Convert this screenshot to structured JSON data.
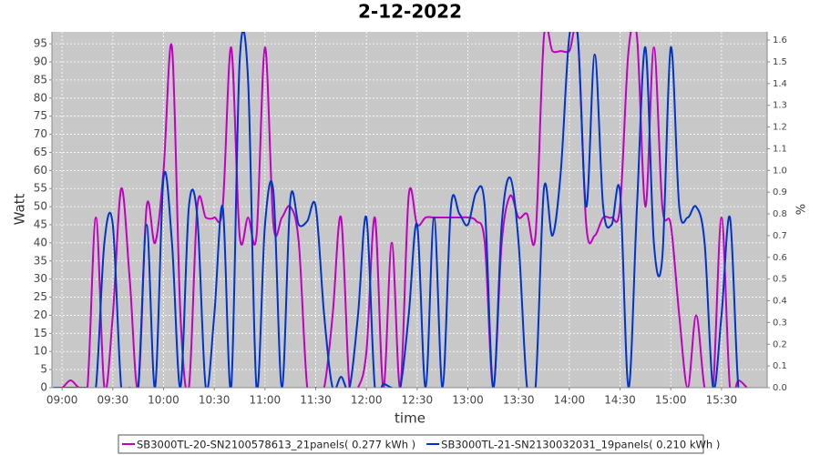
{
  "chart_data": {
    "type": "line",
    "title": "2-12-2022",
    "x_label": "time",
    "y_label": "Watt",
    "y2_label": "%",
    "x": [
      "08:55",
      "09:00",
      "09:05",
      "09:10",
      "09:15",
      "09:20",
      "09:25",
      "09:30",
      "09:35",
      "09:40",
      "09:45",
      "09:50",
      "09:55",
      "10:00",
      "10:05",
      "10:10",
      "10:15",
      "10:20",
      "10:25",
      "10:30",
      "10:35",
      "10:40",
      "10:45",
      "10:50",
      "10:55",
      "11:00",
      "11:05",
      "11:10",
      "11:15",
      "11:20",
      "11:25",
      "11:30",
      "11:35",
      "11:40",
      "11:45",
      "11:50",
      "11:55",
      "12:00",
      "12:05",
      "12:10",
      "12:15",
      "12:20",
      "12:25",
      "12:30",
      "12:35",
      "12:40",
      "12:45",
      "12:50",
      "12:55",
      "13:00",
      "13:05",
      "13:10",
      "13:15",
      "13:20",
      "13:25",
      "13:30",
      "13:35",
      "13:40",
      "13:45",
      "13:50",
      "13:55",
      "14:00",
      "14:05",
      "14:10",
      "14:15",
      "14:20",
      "14:25",
      "14:30",
      "14:35",
      "14:40",
      "14:45",
      "14:50",
      "14:55",
      "15:00",
      "15:05",
      "15:10",
      "15:15",
      "15:20",
      "15:25",
      "15:30",
      "15:35",
      "15:40",
      "15:45"
    ],
    "xlim": [
      "08:54",
      "15:57"
    ],
    "xticks": [
      "09:00",
      "09:30",
      "10:00",
      "10:30",
      "11:00",
      "11:30",
      "12:00",
      "12:30",
      "13:00",
      "13:30",
      "14:00",
      "14:30",
      "15:00",
      "15:30"
    ],
    "ylim": [
      0,
      98.3
    ],
    "yticks": [
      0,
      5,
      10,
      15,
      20,
      25,
      30,
      35,
      40,
      45,
      50,
      55,
      60,
      65,
      70,
      75,
      80,
      85,
      90,
      95
    ],
    "y2lim": [
      0,
      1.638
    ],
    "y2ticks": [
      {
        "value": 0,
        "label": "0.0"
      },
      0.1,
      0.2,
      0.3,
      0.4,
      0.5,
      0.6,
      0.7,
      0.8,
      0.9,
      {
        "value": 1,
        "label": "1.0"
      },
      1.1,
      1.2,
      1.3,
      1.4,
      1.5,
      1.6
    ],
    "grid": true,
    "legend": "bottom",
    "series": [
      {
        "name": "SB3000TL-20-SN2100578613_21panels( 0.277 kWh )",
        "color": "#c000c0",
        "values": [
          0,
          0,
          2,
          0,
          0,
          47,
          0,
          20,
          55,
          30,
          0,
          50,
          40,
          60,
          94,
          20,
          0,
          50,
          47,
          47,
          50,
          94,
          42,
          47,
          42,
          94,
          45,
          47,
          50,
          40,
          0,
          0,
          0,
          20,
          47,
          0,
          0,
          10,
          47,
          0,
          40,
          0,
          53,
          45,
          47,
          47,
          47,
          47,
          47,
          47,
          46,
          40,
          0,
          40,
          53,
          47,
          48,
          42,
          97,
          93,
          93,
          93,
          97,
          45,
          42,
          47,
          47,
          50,
          93,
          97,
          50,
          94,
          50,
          45,
          20,
          0,
          20,
          0,
          0,
          47,
          0,
          2,
          0
        ]
      },
      {
        "name": "SB3000TL-21-SN2130032031_19panels( 0.210 kWh )",
        "color": "#0033cc",
        "values": [
          0,
          0,
          0,
          0,
          0,
          0,
          40,
          45,
          0,
          0,
          0,
          45,
          0,
          58,
          40,
          0,
          50,
          47,
          0,
          20,
          50,
          0,
          90,
          85,
          0,
          45,
          54,
          0,
          52,
          45,
          46,
          50,
          20,
          0,
          3,
          0,
          20,
          47,
          0,
          1,
          0,
          0,
          20,
          45,
          0,
          47,
          0,
          50,
          48,
          45,
          54,
          50,
          0,
          45,
          58,
          40,
          0,
          0,
          55,
          42,
          60,
          97,
          97,
          50,
          92,
          50,
          45,
          54,
          0,
          50,
          94,
          40,
          36,
          94,
          50,
          47,
          50,
          40,
          0,
          20,
          47,
          0,
          0
        ]
      }
    ]
  }
}
